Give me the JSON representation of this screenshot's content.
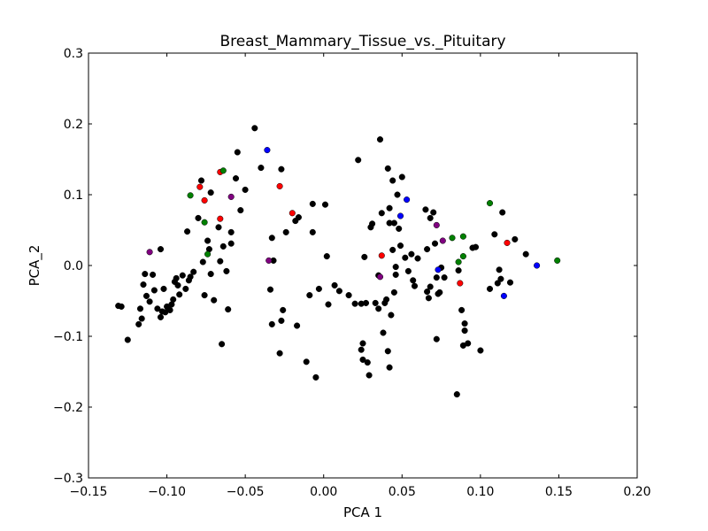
{
  "chart_data": {
    "type": "scatter",
    "title": "Breast_Mammary_Tissue_vs._Pituitary",
    "xlabel": "PCA 1",
    "ylabel": "PCA_2",
    "xlim": [
      -0.15,
      0.2
    ],
    "ylim": [
      -0.3,
      0.3
    ],
    "xticks": [
      -0.15,
      -0.1,
      -0.05,
      0.0,
      0.05,
      0.1,
      0.15,
      0.2
    ],
    "yticks": [
      -0.3,
      -0.2,
      -0.1,
      0.0,
      0.1,
      0.2,
      0.3
    ],
    "xtick_labels": [
      "−0.15",
      "−0.10",
      "−0.05",
      "0.00",
      "0.05",
      "0.10",
      "0.15",
      "0.20"
    ],
    "ytick_labels": [
      "−0.3",
      "−0.2",
      "−0.1",
      "0.0",
      "0.1",
      "0.2",
      "0.3"
    ],
    "grid": false,
    "legend": "none",
    "series": [
      {
        "color": "#000000",
        "points": [
          [
            -0.131,
            -0.057
          ],
          [
            -0.129,
            -0.058
          ],
          [
            -0.125,
            -0.105
          ],
          [
            -0.118,
            -0.083
          ],
          [
            -0.117,
            -0.061
          ],
          [
            -0.116,
            -0.075
          ],
          [
            -0.115,
            -0.027
          ],
          [
            -0.114,
            -0.012
          ],
          [
            -0.113,
            -0.043
          ],
          [
            -0.111,
            -0.051
          ],
          [
            -0.109,
            -0.013
          ],
          [
            -0.108,
            -0.035
          ],
          [
            -0.106,
            -0.061
          ],
          [
            -0.104,
            0.023
          ],
          [
            -0.104,
            -0.073
          ],
          [
            -0.103,
            -0.065
          ],
          [
            -0.102,
            -0.033
          ],
          [
            -0.101,
            -0.066
          ],
          [
            -0.1,
            -0.058
          ],
          [
            -0.098,
            -0.063
          ],
          [
            -0.097,
            -0.055
          ],
          [
            -0.096,
            -0.048
          ],
          [
            -0.095,
            -0.023
          ],
          [
            -0.094,
            -0.018
          ],
          [
            -0.093,
            -0.028
          ],
          [
            -0.092,
            -0.041
          ],
          [
            -0.09,
            -0.014
          ],
          [
            -0.088,
            -0.033
          ],
          [
            -0.087,
            0.048
          ],
          [
            -0.086,
            -0.021
          ],
          [
            -0.085,
            -0.016
          ],
          [
            -0.083,
            -0.009
          ],
          [
            -0.08,
            0.067
          ],
          [
            -0.078,
            0.12
          ],
          [
            -0.077,
            0.005
          ],
          [
            -0.076,
            -0.042
          ],
          [
            -0.074,
            0.035
          ],
          [
            -0.073,
            0.023
          ],
          [
            -0.072,
            0.103
          ],
          [
            -0.072,
            -0.012
          ],
          [
            -0.07,
            -0.049
          ],
          [
            -0.067,
            0.054
          ],
          [
            -0.066,
            0.006
          ],
          [
            -0.065,
            -0.111
          ],
          [
            -0.064,
            0.027
          ],
          [
            -0.062,
            -0.008
          ],
          [
            -0.061,
            -0.062
          ],
          [
            -0.059,
            0.031
          ],
          [
            -0.059,
            0.047
          ],
          [
            -0.056,
            0.123
          ],
          [
            -0.055,
            0.16
          ],
          [
            -0.053,
            0.078
          ],
          [
            -0.05,
            0.107
          ],
          [
            -0.044,
            0.194
          ],
          [
            -0.04,
            0.138
          ],
          [
            -0.034,
            -0.034
          ],
          [
            -0.032,
            0.007
          ],
          [
            -0.033,
            0.039
          ],
          [
            -0.033,
            -0.083
          ],
          [
            -0.028,
            -0.124
          ],
          [
            -0.027,
            0.136
          ],
          [
            -0.027,
            -0.078
          ],
          [
            -0.026,
            -0.063
          ],
          [
            -0.024,
            0.047
          ],
          [
            -0.018,
            0.063
          ],
          [
            -0.017,
            -0.085
          ],
          [
            -0.016,
            0.068
          ],
          [
            -0.011,
            -0.136
          ],
          [
            -0.009,
            -0.042
          ],
          [
            -0.007,
            0.087
          ],
          [
            -0.007,
            0.047
          ],
          [
            -0.005,
            -0.158
          ],
          [
            -0.003,
            -0.033
          ],
          [
            0.001,
            0.086
          ],
          [
            0.002,
            0.013
          ],
          [
            0.003,
            -0.055
          ],
          [
            0.007,
            -0.028
          ],
          [
            0.01,
            -0.036
          ],
          [
            0.016,
            -0.042
          ],
          [
            0.02,
            -0.054
          ],
          [
            0.022,
            0.149
          ],
          [
            0.024,
            -0.054
          ],
          [
            0.024,
            -0.119
          ],
          [
            0.025,
            -0.133
          ],
          [
            0.025,
            -0.11
          ],
          [
            0.026,
            0.012
          ],
          [
            0.027,
            -0.053
          ],
          [
            0.028,
            -0.137
          ],
          [
            0.029,
            -0.155
          ],
          [
            0.03,
            0.054
          ],
          [
            0.031,
            0.059
          ],
          [
            0.033,
            -0.053
          ],
          [
            0.035,
            -0.014
          ],
          [
            0.035,
            -0.061
          ],
          [
            0.036,
            0.178
          ],
          [
            0.037,
            0.074
          ],
          [
            0.038,
            -0.095
          ],
          [
            0.039,
            -0.053
          ],
          [
            0.04,
            -0.048
          ],
          [
            0.041,
            0.137
          ],
          [
            0.041,
            -0.121
          ],
          [
            0.042,
            0.081
          ],
          [
            0.042,
            0.06
          ],
          [
            0.042,
            -0.144
          ],
          [
            0.043,
            -0.07
          ],
          [
            0.044,
            0.12
          ],
          [
            0.044,
            0.022
          ],
          [
            0.045,
            0.06
          ],
          [
            0.045,
            -0.038
          ],
          [
            0.046,
            -0.013
          ],
          [
            0.046,
            -0.002
          ],
          [
            0.047,
            0.1
          ],
          [
            0.048,
            0.052
          ],
          [
            0.049,
            0.028
          ],
          [
            0.05,
            0.125
          ],
          [
            0.052,
            0.011
          ],
          [
            0.054,
            -0.008
          ],
          [
            0.056,
            0.016
          ],
          [
            0.057,
            -0.021
          ],
          [
            0.058,
            -0.029
          ],
          [
            0.06,
            0.01
          ],
          [
            0.065,
            0.079
          ],
          [
            0.066,
            0.023
          ],
          [
            0.066,
            -0.037
          ],
          [
            0.067,
            -0.046
          ],
          [
            0.068,
            -0.03
          ],
          [
            0.068,
            0.067
          ],
          [
            0.07,
            0.075
          ],
          [
            0.071,
            0.031
          ],
          [
            0.072,
            -0.017
          ],
          [
            0.072,
            -0.104
          ],
          [
            0.073,
            -0.04
          ],
          [
            0.074,
            -0.038
          ],
          [
            0.075,
            -0.003
          ],
          [
            0.077,
            -0.017
          ],
          [
            0.085,
            -0.182
          ],
          [
            0.086,
            -0.007
          ],
          [
            0.088,
            -0.063
          ],
          [
            0.089,
            -0.113
          ],
          [
            0.09,
            -0.082
          ],
          [
            0.09,
            -0.092
          ],
          [
            0.092,
            -0.11
          ],
          [
            0.095,
            0.025
          ],
          [
            0.097,
            0.026
          ],
          [
            0.1,
            -0.12
          ],
          [
            0.106,
            -0.033
          ],
          [
            0.109,
            0.044
          ],
          [
            0.111,
            -0.025
          ],
          [
            0.112,
            -0.006
          ],
          [
            0.113,
            -0.019
          ],
          [
            0.114,
            0.075
          ],
          [
            0.119,
            -0.024
          ],
          [
            0.122,
            0.037
          ],
          [
            0.129,
            0.016
          ]
        ]
      },
      {
        "color": "#0000ff",
        "points": [
          [
            -0.036,
            0.163
          ],
          [
            0.053,
            0.093
          ],
          [
            0.049,
            0.07
          ],
          [
            0.073,
            -0.006
          ],
          [
            0.115,
            -0.043
          ],
          [
            0.136,
            0.0
          ]
        ]
      },
      {
        "color": "#ff0000",
        "points": [
          [
            -0.066,
            0.132
          ],
          [
            -0.079,
            0.111
          ],
          [
            -0.076,
            0.092
          ],
          [
            -0.066,
            0.066
          ],
          [
            -0.028,
            0.112
          ],
          [
            -0.02,
            0.074
          ],
          [
            0.037,
            0.014
          ],
          [
            0.087,
            -0.025
          ],
          [
            0.117,
            0.032
          ]
        ]
      },
      {
        "color": "#008000",
        "points": [
          [
            -0.064,
            0.134
          ],
          [
            -0.085,
            0.099
          ],
          [
            -0.076,
            0.061
          ],
          [
            -0.074,
            0.016
          ],
          [
            0.082,
            0.039
          ],
          [
            0.089,
            0.041
          ],
          [
            0.086,
            0.005
          ],
          [
            0.089,
            0.013
          ],
          [
            0.106,
            0.088
          ],
          [
            0.149,
            0.007
          ]
        ]
      },
      {
        "color": "#800080",
        "points": [
          [
            -0.111,
            0.019
          ],
          [
            -0.059,
            0.097
          ],
          [
            -0.035,
            0.007
          ],
          [
            0.036,
            -0.016
          ],
          [
            0.072,
            0.057
          ],
          [
            0.076,
            0.035
          ]
        ]
      }
    ]
  }
}
